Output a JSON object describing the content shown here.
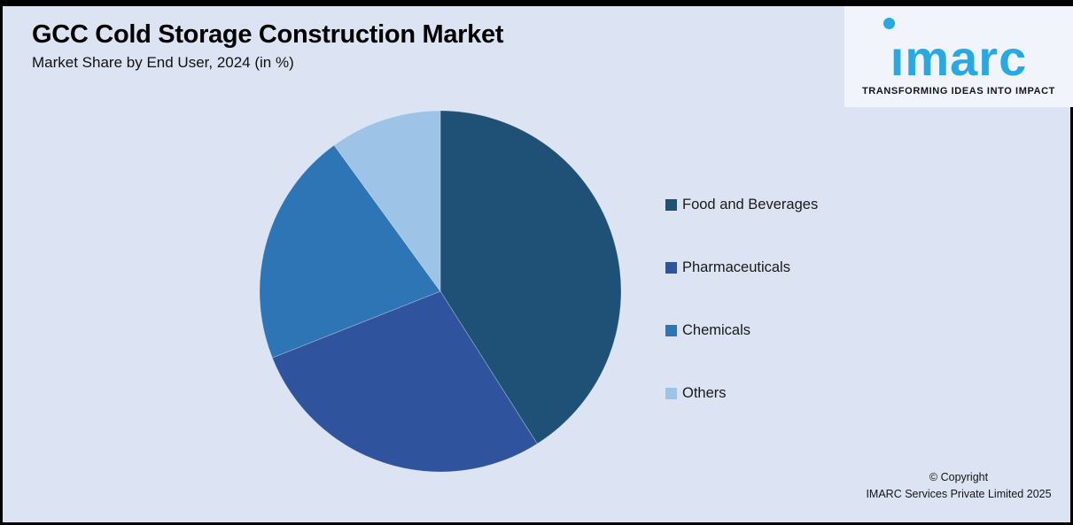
{
  "page": {
    "title": "GCC Cold Storage Construction Market",
    "subtitle": "Market Share by End User, 2024 (in %)",
    "background_color": "#dce3f2",
    "border_color": "#000000"
  },
  "logo": {
    "brand": "imarc",
    "tagline": "TRANSFORMING IDEAS INTO IMPACT",
    "brand_color": "#29a9e1",
    "tagline_color": "#14141e",
    "box_color": "#f1f5fb"
  },
  "chart_data": {
    "type": "pie",
    "title": "GCC Cold Storage Construction Market",
    "subtitle": "Market Share by End User, 2024 (in %)",
    "unit": "%",
    "start_angle_deg": 0,
    "direction": "clockwise",
    "legend_position": "right",
    "data_labels_shown": false,
    "categories": [
      "Food and Beverages",
      "Pharmaceuticals",
      "Chemicals",
      "Others"
    ],
    "values": [
      41,
      28,
      21,
      10
    ],
    "colors": [
      "#1f5177",
      "#2f549d",
      "#2e75b6",
      "#9dc3e6"
    ]
  },
  "legend": {
    "items": [
      {
        "label": "Food and Beverages",
        "color": "#1f5177"
      },
      {
        "label": "Pharmaceuticals",
        "color": "#2f549d"
      },
      {
        "label": "Chemicals",
        "color": "#2e75b6"
      },
      {
        "label": "Others",
        "color": "#9dc3e6"
      }
    ]
  },
  "footer": {
    "copyright_line1": "© Copyright",
    "copyright_line2": "IMARC Services Private Limited 2025"
  }
}
